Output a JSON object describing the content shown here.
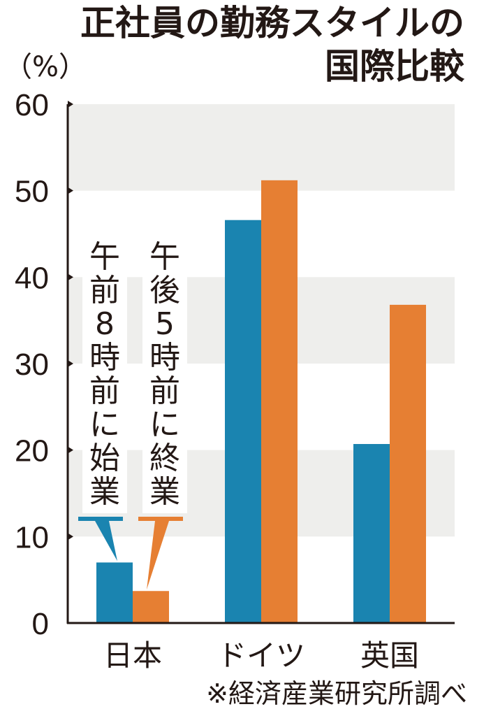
{
  "title_line1": "正社員の勤務スタイルの",
  "title_line2": "国際比較",
  "unit": "（%）",
  "source": "※経済産業研究所調べ",
  "colors": {
    "blue": "#1a84b0",
    "orange": "#e67f33",
    "band": "#eeeeec",
    "axis": "#231815"
  },
  "chart_data": {
    "type": "bar",
    "title": "正社員の勤務スタイルの国際比較",
    "ylabel": "（%）",
    "categories": [
      "日本",
      "ドイツ",
      "英国"
    ],
    "series": [
      {
        "name": "午前8時前に始業",
        "values": [
          7,
          46.6,
          20.7
        ],
        "color": "#1a84b0"
      },
      {
        "name": "午後5時前に終業",
        "values": [
          3.7,
          51.2,
          36.8
        ],
        "color": "#e67f33"
      }
    ],
    "ylim": [
      0,
      60
    ],
    "yticks": [
      "0",
      "10",
      "20",
      "30",
      "40",
      "50",
      "60"
    ],
    "grid": "alternating bands",
    "legend": "vertical labels above 日本 bars"
  }
}
